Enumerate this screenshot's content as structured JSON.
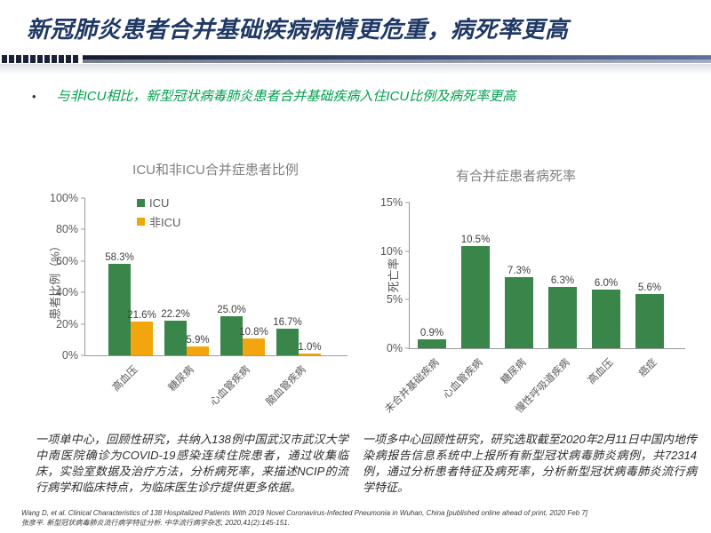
{
  "slide": {
    "title": "新冠肺炎患者合并基础疾病病情更危重，病死率更高",
    "bullet_marker": "•",
    "bullet_text": "与非ICU相比，新型冠状病毒肺炎患者合并基础疾病入住ICU比例及病死率更高",
    "colors": {
      "title_navy": "#1f3864",
      "bullet_green": "#00a04d",
      "bar_green": "#3a8549",
      "bar_orange": "#f2a50c",
      "divider_dark": "#151c31",
      "divider_light": "#5f7099",
      "chart_title_gray": "#7f7f7f",
      "axis_label_gray": "#595959"
    },
    "notes": {
      "left": "一项单中心，回顾性研究，共纳入138例中国武汉市武汉大学中南医院确诊为COVID-19感染连续住院患者，通过收集临床，实验室数据及治疗方法，分析病死率，来描述NCIP的流行病学和临床特点，为临床医生诊疗提供更多依据。",
      "right": "一项多中心回顾性研究，研究选取截至2020年2月11日中国内地传染病报告信息系统中上报所有新型冠状病毒肺炎病例，共72314例，通过分析患者特征及病死率，分析新型冠状病毒肺炎流行病学特征。"
    },
    "references": [
      "Wang D, et al. Clinical Characteristics of 138 Hospitalized Patients With 2019  Novel Coronavirus-Infected Pneumonia in Wuhan, China [published online ahead of print, 2020 Feb 7]",
      "张彦平. 新型冠状病毒肺炎流行病学特征分析. 中华流行病学杂志, 2020,41(2):145-151."
    ]
  },
  "chart_data": [
    {
      "type": "bar",
      "title": "ICU和非ICU合并症患者比例",
      "xlabel": "",
      "ylabel": "患者比例（%）",
      "categories": [
        "高血压",
        "糖尿病",
        "心血管疾病",
        "脑血管疾病"
      ],
      "series": [
        {
          "name": "ICU",
          "color": "#3a8549",
          "values": [
            58.3,
            22.2,
            25.0,
            16.7
          ]
        },
        {
          "name": "非ICU",
          "color": "#f2a50c",
          "values": [
            21.6,
            5.9,
            10.8,
            1.0
          ]
        }
      ],
      "ylim": [
        0,
        100
      ],
      "yticks": [
        0,
        20,
        40,
        60,
        80,
        100
      ],
      "ytick_suffix": "%",
      "grid": false,
      "data_labels": true,
      "legend_position": "top-left-inside"
    },
    {
      "type": "bar",
      "title": "有合并症患者病死率",
      "xlabel": "",
      "ylabel": "死亡率",
      "categories": [
        "未合并基础疾病",
        "心血管疾病",
        "糖尿病",
        "慢性呼吸道疾病",
        "高血压",
        "癌症"
      ],
      "series": [
        {
          "name": "病死率",
          "color": "#3a8549",
          "values": [
            0.9,
            10.5,
            7.3,
            6.3,
            6.0,
            5.6
          ]
        }
      ],
      "ylim": [
        0,
        15
      ],
      "yticks": [
        0,
        5,
        10,
        15
      ],
      "ytick_suffix": "%",
      "grid": false,
      "data_labels": true,
      "legend_position": "none"
    }
  ]
}
